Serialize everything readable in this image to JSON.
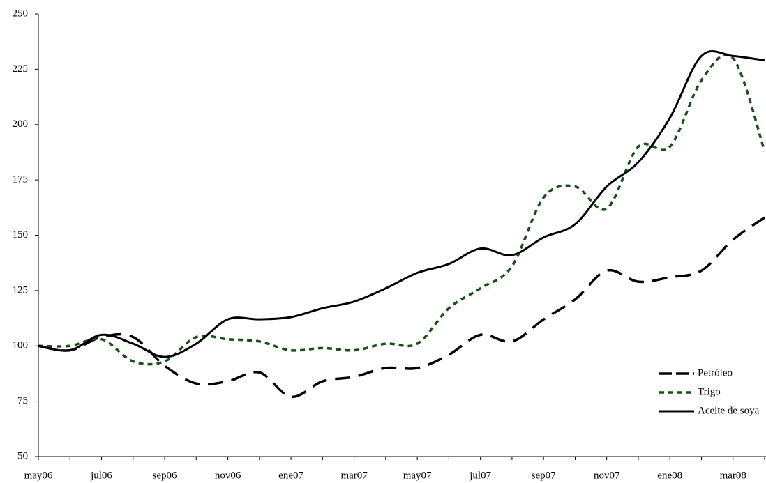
{
  "chart_data": {
    "type": "line",
    "categories": [
      "may06",
      null,
      "jul06",
      null,
      "sep06",
      null,
      "nov06",
      null,
      "ene07",
      null,
      "mar07",
      null,
      "may07",
      null,
      "jul07",
      null,
      "sep07",
      null,
      "nov07",
      null,
      "ene08",
      null,
      "mar08",
      null
    ],
    "series": [
      {
        "name": "Petróleo",
        "color": "#000000",
        "values": [
          100,
          98,
          104,
          104,
          91,
          83,
          84,
          88,
          77,
          84,
          86,
          90,
          90,
          96,
          105,
          102,
          112,
          121,
          134,
          129,
          131,
          134,
          148,
          158
        ]
      },
      {
        "name": "Trigo",
        "color": "#1a4d1a",
        "values": [
          100,
          100,
          103,
          93,
          93,
          104,
          103,
          102,
          98,
          99,
          98,
          101,
          101,
          117,
          126,
          136,
          167,
          172,
          162,
          190,
          190,
          220,
          230,
          188
        ]
      },
      {
        "name": "Aceite de soya",
        "color": "#000000",
        "values": [
          100,
          98,
          105,
          101,
          95,
          101,
          112,
          112,
          113,
          117,
          120,
          126,
          133,
          137,
          144,
          141,
          149,
          155,
          172,
          183,
          203,
          231,
          231,
          229
        ]
      }
    ],
    "ylim": [
      50,
      250
    ],
    "yticks": [
      50,
      75,
      100,
      125,
      150,
      175,
      200,
      225,
      250
    ],
    "grid": false,
    "legend": "lower right"
  }
}
